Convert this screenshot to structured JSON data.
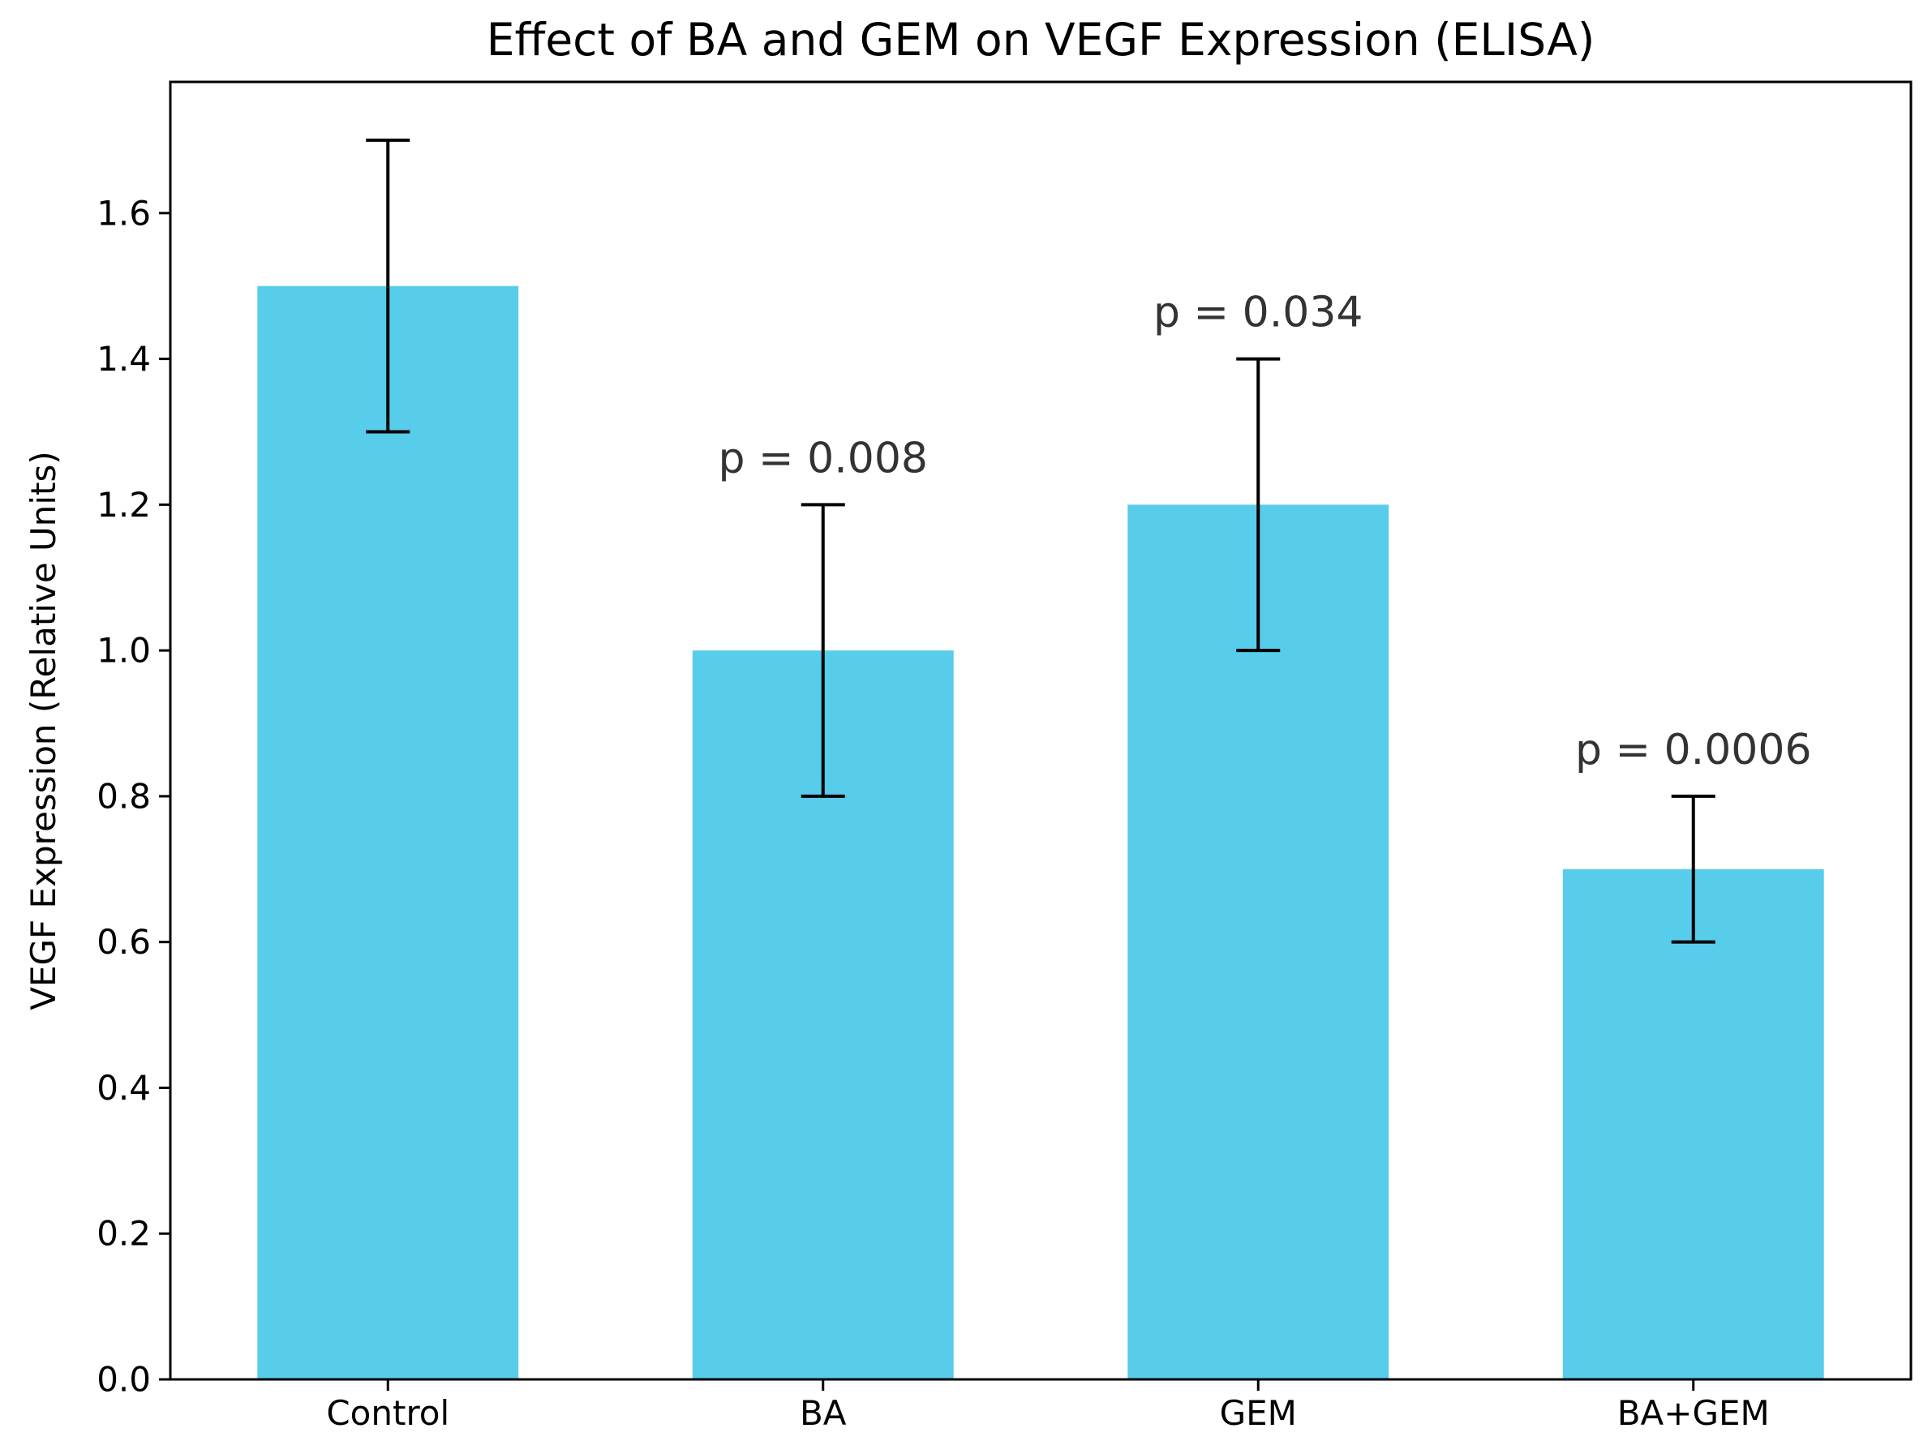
{
  "chart_data": {
    "type": "bar",
    "title": "Effect of BA and GEM on VEGF Expression (ELISA)",
    "xlabel": "",
    "ylabel": "VEGF Expression (Relative Units)",
    "categories": [
      "Control",
      "BA",
      "GEM",
      "BA+GEM"
    ],
    "values": [
      1.5,
      1.0,
      1.2,
      0.7
    ],
    "errors": [
      0.2,
      0.2,
      0.2,
      0.1
    ],
    "annotations": [
      "",
      "p = 0.008",
      "p = 0.034",
      "p = 0.0006"
    ],
    "ylim": [
      0,
      1.78
    ],
    "yticks": [
      0.0,
      0.2,
      0.4,
      0.6,
      0.8,
      1.0,
      1.2,
      1.4,
      1.6
    ],
    "ytick_labels": [
      "0.0",
      "0.2",
      "0.4",
      "0.6",
      "0.8",
      "1.0",
      "1.2",
      "1.4",
      "1.6"
    ],
    "grid": false,
    "colors": {
      "bar": "#57cceb",
      "error_bar": "#000000",
      "axis": "#000000",
      "annotation": "#333333"
    }
  }
}
